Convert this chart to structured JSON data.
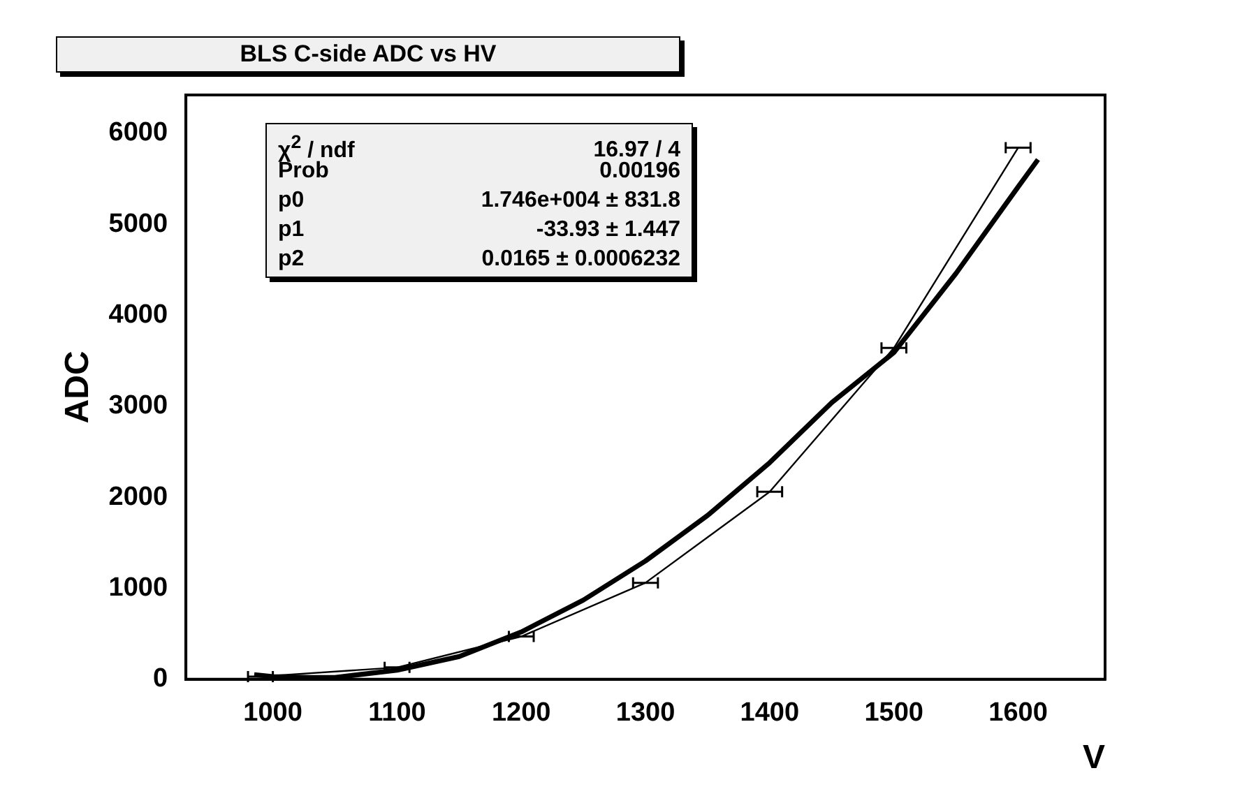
{
  "chart_data": {
    "type": "line",
    "title": "BLS C-side ADC vs HV",
    "xlabel": "V",
    "ylabel": "ADC",
    "xlim": [
      930,
      1670
    ],
    "xticks": [
      1000,
      1100,
      1200,
      1300,
      1400,
      1500,
      1600
    ],
    "ylim": [
      0,
      6420
    ],
    "yticks": [
      0,
      1000,
      2000,
      3000,
      4000,
      5000,
      6000
    ],
    "grid": false,
    "legend": false,
    "marker": "none",
    "series": [
      {
        "color": "#000000",
        "x": [
          990,
          1100,
          1200,
          1300,
          1400,
          1500,
          1600
        ],
        "values": [
          30,
          130,
          470,
          1060,
          2060,
          3640,
          5840
        ],
        "xerrors": [
          10,
          10,
          10,
          10,
          10,
          10,
          10
        ]
      },
      {
        "color": "#000000",
        "x": [
          985,
          1000,
          1030,
          1050,
          1100,
          1150,
          1200,
          1250,
          1300,
          1350,
          1400,
          1450,
          1500,
          1550,
          1600,
          1616
        ],
        "values": [
          50,
          30,
          20,
          20,
          100,
          250,
          520,
          870,
          1300,
          1800,
          2380,
          3040,
          3590,
          4460,
          5410,
          5710
        ]
      }
    ],
    "annotations": [
      "χ$^{2}$ / ndf",
      "16.97 / 4",
      "Prob",
      "0.00196",
      "p0",
      "1.746e+004 ± 831.8",
      "p1",
      "-33.93 ± 1.447",
      "p2",
      "0.0165 ± 0.0006232"
    ]
  }
}
